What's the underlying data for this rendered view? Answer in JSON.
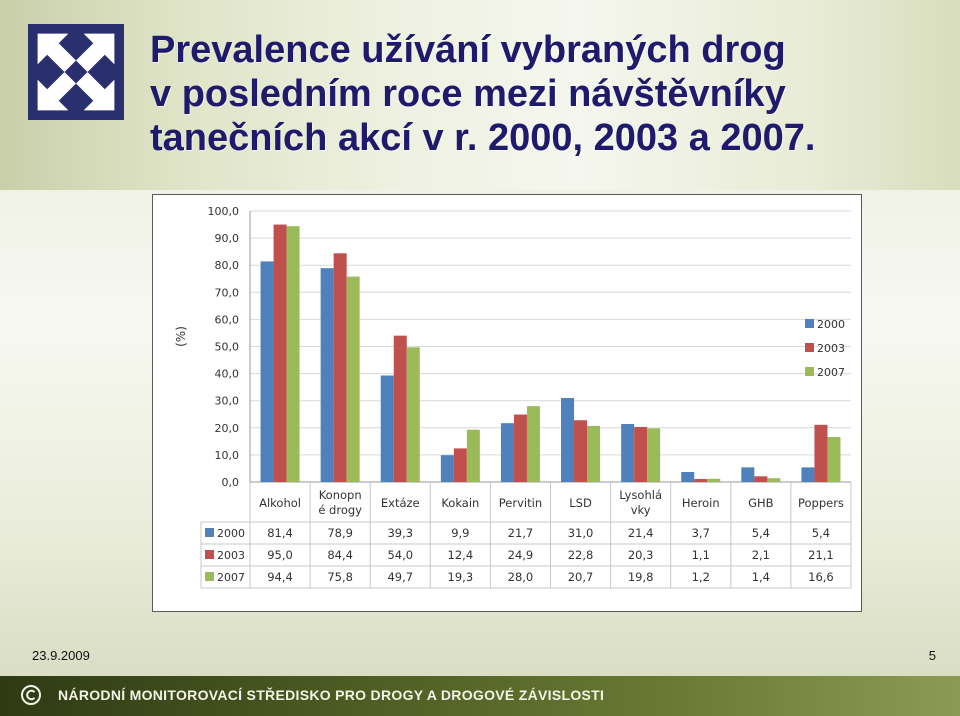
{
  "title_lines": [
    "Prevalence užívání vybraných drog",
    "v posledním roce mezi návštěvníky",
    "tanečních akcí v r. 2000, 2003 a 2007."
  ],
  "logo": {
    "icon": "arrows-cross-logo-icon"
  },
  "footer": {
    "date": "23.9.2009",
    "page": "5",
    "organization": "NÁRODNÍ MONITOROVACÍ STŘEDISKO PRO DROGY A DROGOVÉ ZÁVISLOSTI",
    "copyright_icon": "copyright-icon"
  },
  "colors": {
    "series_2000": "#4f81bd",
    "series_2003": "#c0504d",
    "series_2007": "#9bbb59",
    "title": "#1f1a6b"
  },
  "chart_data": {
    "type": "bar",
    "ylabel": "(%)",
    "ylim": [
      0,
      100
    ],
    "yticks": [
      "0,0",
      "10,0",
      "20,0",
      "30,0",
      "40,0",
      "50,0",
      "60,0",
      "70,0",
      "80,0",
      "90,0",
      "100,0"
    ],
    "grid": true,
    "legend_position": "right",
    "categories": [
      "Alkohol",
      "Konopné drogy",
      "Extáze",
      "Kokain",
      "Pervitin",
      "LSD",
      "Lysohlávky",
      "Heroin",
      "GHB",
      "Poppers"
    ],
    "category_label_lines": [
      [
        "Alkohol"
      ],
      [
        "Konopn",
        "é drogy"
      ],
      [
        "Extáze"
      ],
      [
        "Kokain"
      ],
      [
        "Pervitin"
      ],
      [
        "LSD"
      ],
      [
        "Lysohlá",
        "vky"
      ],
      [
        "Heroin"
      ],
      [
        "GHB"
      ],
      [
        "Poppers"
      ]
    ],
    "series": [
      {
        "name": "2000",
        "values": [
          81.4,
          78.9,
          39.3,
          9.9,
          21.7,
          31.0,
          21.4,
          3.7,
          5.4,
          5.4
        ],
        "labels": [
          "81,4",
          "78,9",
          "39,3",
          "9,9",
          "21,7",
          "31,0",
          "21,4",
          "3,7",
          "5,4",
          "5,4"
        ]
      },
      {
        "name": "2003",
        "values": [
          95.0,
          84.4,
          54.0,
          12.4,
          24.9,
          22.8,
          20.3,
          1.1,
          2.1,
          21.1
        ],
        "labels": [
          "95,0",
          "84,4",
          "54,0",
          "12,4",
          "24,9",
          "22,8",
          "20,3",
          "1,1",
          "2,1",
          "21,1"
        ]
      },
      {
        "name": "2007",
        "values": [
          94.4,
          75.8,
          49.7,
          19.3,
          28.0,
          20.7,
          19.8,
          1.2,
          1.4,
          16.6
        ],
        "labels": [
          "94,4",
          "75,8",
          "49,7",
          "19,3",
          "28,0",
          "20,7",
          "19,8",
          "1,2",
          "1,4",
          "16,6"
        ]
      }
    ]
  }
}
